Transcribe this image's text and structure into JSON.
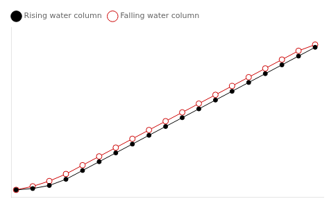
{
  "chart_data": {
    "type": "line",
    "x": [
      0,
      1,
      2,
      3,
      4,
      5,
      6,
      7,
      8,
      9,
      10,
      11,
      12,
      13,
      14,
      15,
      16,
      17,
      18
    ],
    "series": [
      {
        "name": "Rising water column",
        "color": "#000000",
        "marker": "circle",
        "values": [
          0,
          0.15,
          0.5,
          1.2,
          2.2,
          3.2,
          4.2,
          5.2,
          6.2,
          7.2,
          8.2,
          9.2,
          10.2,
          11.2,
          12.2,
          13.2,
          14.2,
          15.2,
          16.2
        ]
      },
      {
        "name": "Falling water column",
        "color": "#cc0000",
        "marker": "open_circle",
        "values": [
          0,
          0.4,
          1.0,
          1.8,
          2.8,
          3.8,
          4.8,
          5.8,
          6.8,
          7.8,
          8.8,
          9.8,
          10.8,
          11.8,
          12.8,
          13.8,
          14.8,
          15.8,
          16.5
        ]
      }
    ],
    "xlim": [
      -0.3,
      18.5
    ],
    "ylim": [
      -0.8,
      18.5
    ],
    "grid": false,
    "tick_labels": false,
    "legend": "upper left"
  }
}
